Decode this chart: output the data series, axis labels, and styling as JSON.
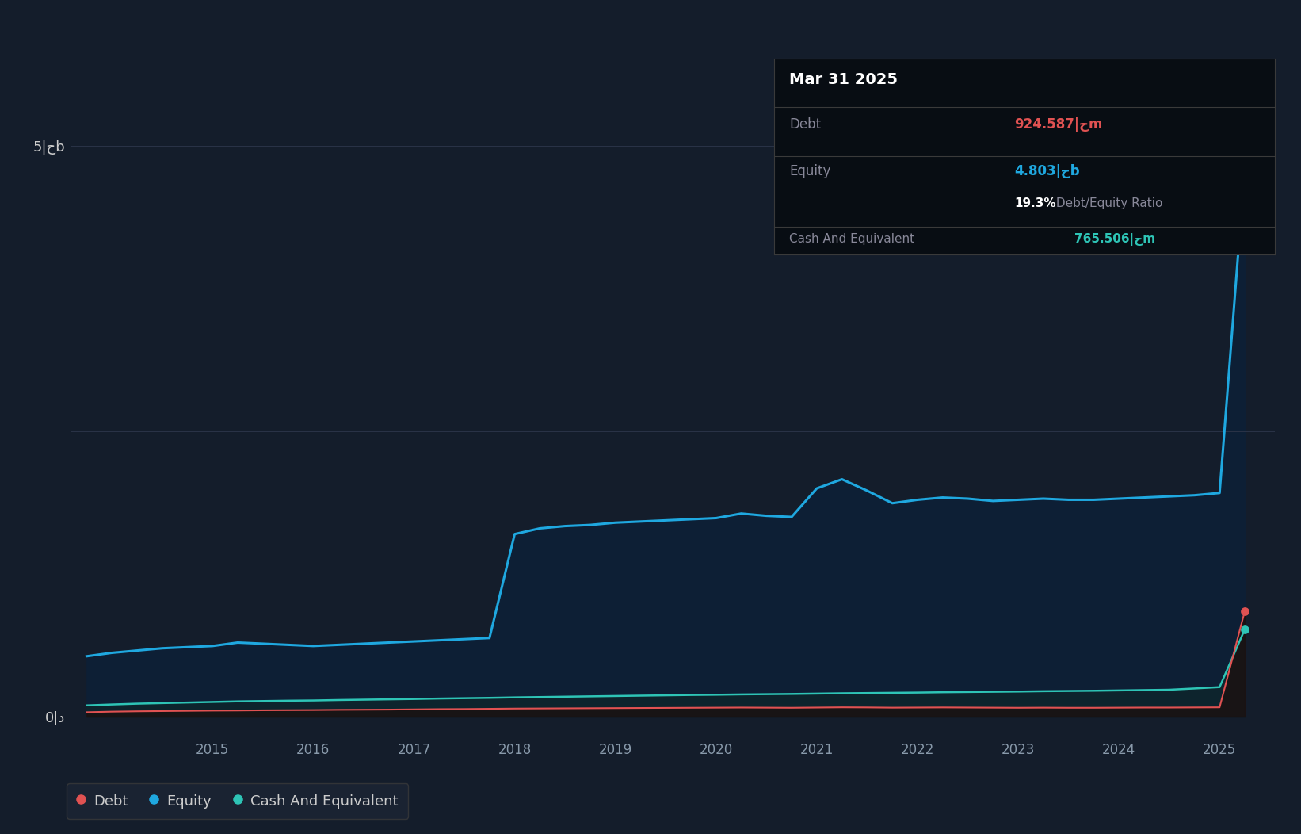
{
  "background_color": "#141d2b",
  "plot_bg_color": "#141d2b",
  "grid_color": "#2a3347",
  "debt_color": "#e05252",
  "equity_color": "#1fa8e0",
  "cash_color": "#2ec4b6",
  "equity_fill_color": "#0e2035",
  "tooltip_bg": "#080d13",
  "tooltip_border": "#3a3a3a",
  "tooltip_title": "Mar 31 2025",
  "tooltip_debt_label": "Debt",
  "tooltip_debt_value": "924.587|حm",
  "tooltip_equity_label": "Equity",
  "tooltip_equity_value": "4.803|حb",
  "tooltip_ratio_pct": "19.3%",
  "tooltip_ratio_text": " Debt/Equity Ratio",
  "tooltip_cash_label": "Cash And Equivalent",
  "tooltip_cash_value": "765.506|حm",
  "legend_items": [
    "Debt",
    "Equity",
    "Cash And Equivalent"
  ],
  "ytick_label_5b": "5|حb",
  "ytick_label_0": "0|د",
  "ylim_min": -150000000,
  "ylim_max": 5400000000,
  "xlim_start": 2013.6,
  "xlim_end": 2025.55,
  "xtick_years": [
    2015,
    2016,
    2017,
    2018,
    2019,
    2020,
    2021,
    2022,
    2023,
    2024,
    2025
  ],
  "years": [
    2013.75,
    2014.0,
    2014.25,
    2014.5,
    2014.75,
    2015.0,
    2015.25,
    2015.5,
    2015.75,
    2016.0,
    2016.25,
    2016.5,
    2016.75,
    2017.0,
    2017.25,
    2017.5,
    2017.75,
    2018.0,
    2018.25,
    2018.5,
    2018.75,
    2019.0,
    2019.25,
    2019.5,
    2019.75,
    2020.0,
    2020.25,
    2020.5,
    2020.75,
    2021.0,
    2021.25,
    2021.5,
    2021.75,
    2022.0,
    2022.25,
    2022.5,
    2022.75,
    2023.0,
    2023.25,
    2023.5,
    2023.75,
    2024.0,
    2024.25,
    2024.5,
    2024.75,
    2025.0,
    2025.25
  ],
  "equity": [
    530000000,
    560000000,
    580000000,
    600000000,
    610000000,
    620000000,
    650000000,
    640000000,
    630000000,
    620000000,
    630000000,
    640000000,
    650000000,
    660000000,
    670000000,
    680000000,
    690000000,
    1600000000,
    1650000000,
    1670000000,
    1680000000,
    1700000000,
    1710000000,
    1720000000,
    1730000000,
    1740000000,
    1780000000,
    1760000000,
    1750000000,
    2000000000,
    2080000000,
    1980000000,
    1870000000,
    1900000000,
    1920000000,
    1910000000,
    1890000000,
    1900000000,
    1910000000,
    1900000000,
    1900000000,
    1910000000,
    1920000000,
    1930000000,
    1940000000,
    1960000000,
    4803000000
  ],
  "debt": [
    40000000,
    45000000,
    48000000,
    50000000,
    52000000,
    54000000,
    55000000,
    57000000,
    58000000,
    59000000,
    61000000,
    62000000,
    63000000,
    65000000,
    67000000,
    68000000,
    70000000,
    72000000,
    73000000,
    74000000,
    75000000,
    76000000,
    77000000,
    78000000,
    79000000,
    80000000,
    81000000,
    80000000,
    79000000,
    81000000,
    83000000,
    82000000,
    80000000,
    81000000,
    82000000,
    81000000,
    80000000,
    79000000,
    80000000,
    79000000,
    79000000,
    80000000,
    81000000,
    81000000,
    82000000,
    83000000,
    924587000
  ],
  "cash": [
    100000000,
    108000000,
    115000000,
    120000000,
    125000000,
    130000000,
    135000000,
    138000000,
    141000000,
    143000000,
    147000000,
    150000000,
    153000000,
    156000000,
    160000000,
    163000000,
    166000000,
    170000000,
    173000000,
    176000000,
    179000000,
    182000000,
    185000000,
    188000000,
    191000000,
    193000000,
    196000000,
    198000000,
    200000000,
    203000000,
    206000000,
    208000000,
    210000000,
    212000000,
    215000000,
    217000000,
    219000000,
    221000000,
    224000000,
    226000000,
    228000000,
    231000000,
    234000000,
    237000000,
    248000000,
    260000000,
    765506000
  ]
}
